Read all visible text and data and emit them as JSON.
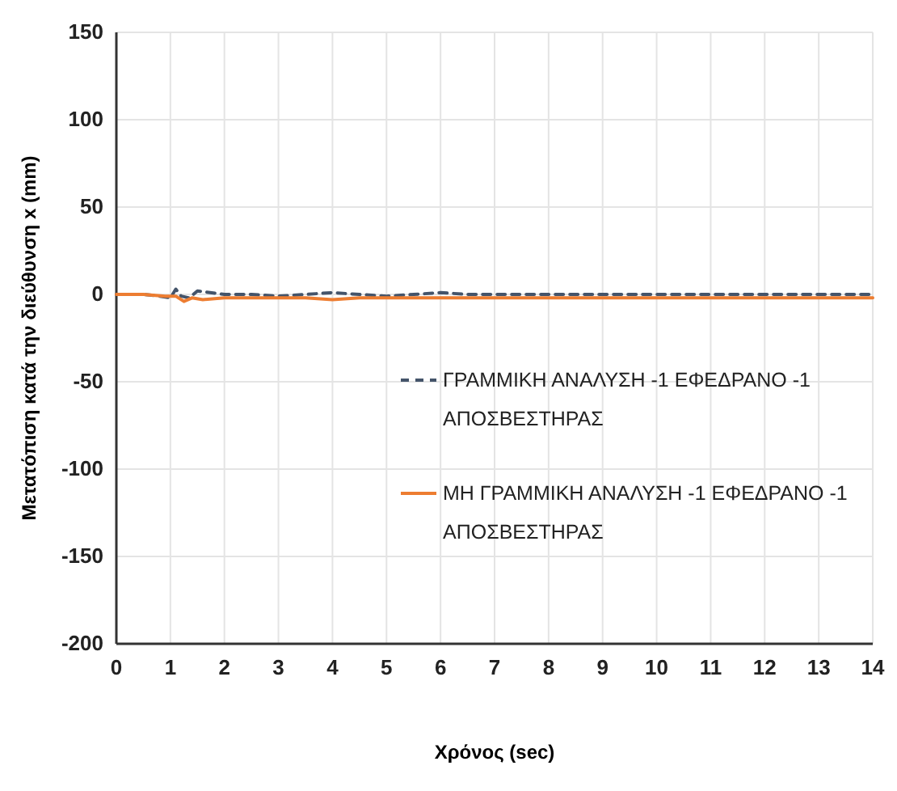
{
  "chart_data": {
    "type": "line",
    "xlabel": "Χρόνος (sec)",
    "ylabel": "Μετατόπιση κατά την διεύθυνση x (mm)",
    "xlim": [
      0,
      14
    ],
    "xticks": [
      0,
      1,
      2,
      3,
      4,
      5,
      6,
      7,
      8,
      9,
      10,
      11,
      12,
      13,
      14
    ],
    "ylim": [
      -200,
      150
    ],
    "yticks": [
      -200,
      -150,
      -100,
      -50,
      0,
      50,
      100,
      150
    ],
    "grid": true,
    "legend": "right",
    "series": [
      {
        "name": "ΓΡΑΜΜΙΚΗ ΑΝΑΛΥΣΗ -1 ΕΦΕΔΡΑΝΟ -1 ΑΠΟΣΒΕΣΤΗΡΑΣ",
        "color": "#44546a",
        "line_style": "dashed",
        "x": [
          0,
          0.5,
          0.8,
          1.0,
          1.1,
          1.2,
          1.35,
          1.5,
          2,
          2.5,
          3,
          3.5,
          4,
          4.5,
          5,
          5.5,
          6,
          6.5,
          7,
          8,
          9,
          10,
          11,
          12,
          13,
          14
        ],
        "values": [
          0,
          0,
          -1,
          -2,
          3,
          -1,
          -2,
          2,
          0,
          0,
          -1,
          0,
          1,
          0,
          -1,
          0,
          1,
          0,
          0,
          0,
          0,
          0,
          0,
          0,
          0,
          0
        ]
      },
      {
        "name": "ΜΗ ΓΡΑΜΜΙΚΗ ΑΝΑΛΥΣΗ -1 ΕΦΕΔΡΑΝΟ -1 ΑΠΟΣΒΕΣΤΗΡΑΣ",
        "color": "#ed7d31",
        "line_style": "solid",
        "x": [
          0,
          0.5,
          0.9,
          1.1,
          1.25,
          1.4,
          1.6,
          2,
          2.5,
          3,
          3.5,
          4,
          4.5,
          5,
          6,
          7,
          8,
          9,
          10,
          11,
          12,
          13,
          14
        ],
        "values": [
          0,
          0,
          -1,
          -1,
          -4,
          -2,
          -3,
          -2,
          -2,
          -2,
          -2,
          -3,
          -2,
          -2,
          -2,
          -2,
          -2,
          -2,
          -2,
          -2,
          -2,
          -2,
          -2
        ]
      }
    ]
  }
}
